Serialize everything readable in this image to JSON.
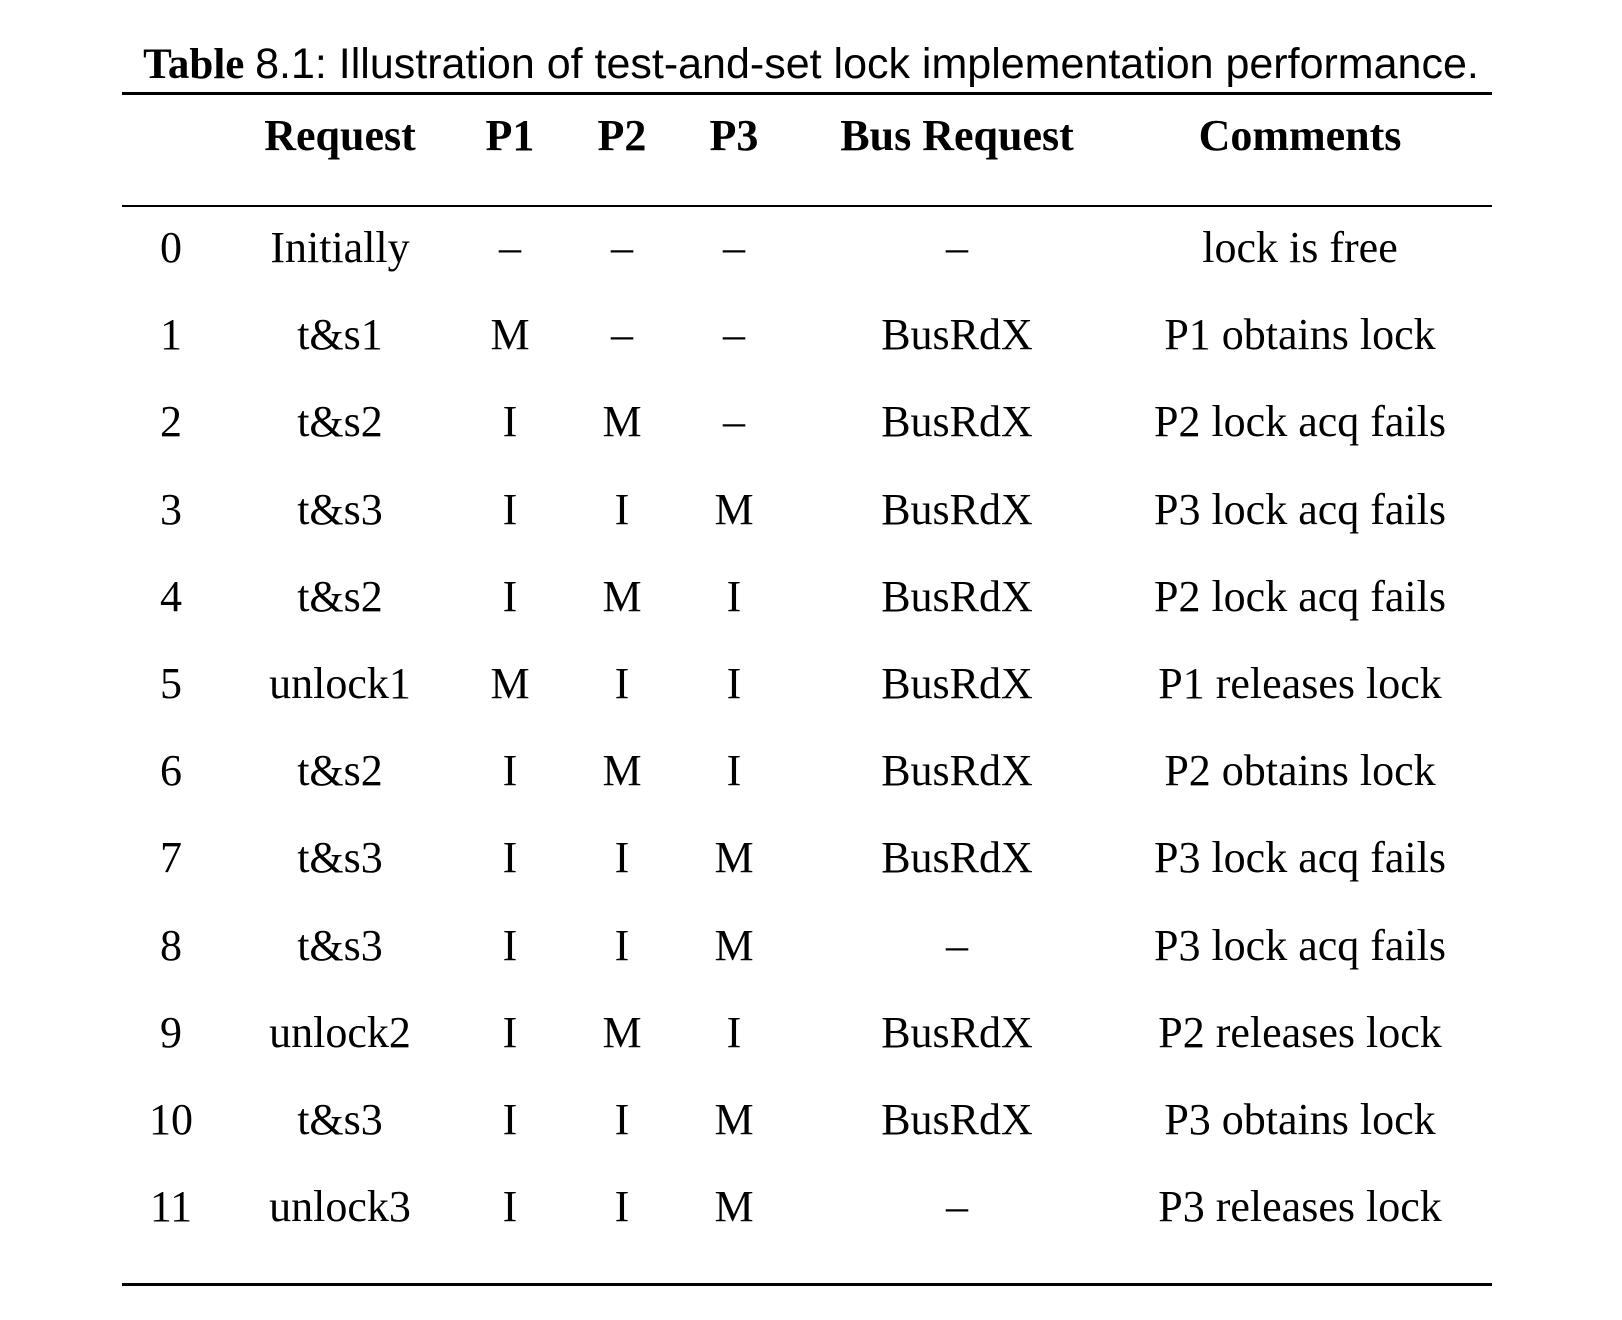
{
  "caption": {
    "label": "Table",
    "number": "8.1",
    "text": ": Illustration of test-and-set lock implementation performance."
  },
  "table": {
    "headers": {
      "index": "",
      "request": "Request",
      "p1": "P1",
      "p2": "P2",
      "p3": "P3",
      "bus_request": "Bus Request",
      "comments": "Comments"
    },
    "rows": [
      {
        "index": "0",
        "request": "Initially",
        "p1": "–",
        "p2": "–",
        "p3": "–",
        "bus_request": "–",
        "comments": "lock is free"
      },
      {
        "index": "1",
        "request": "t&s1",
        "p1": "M",
        "p2": "–",
        "p3": "–",
        "bus_request": "BusRdX",
        "comments": "P1 obtains lock"
      },
      {
        "index": "2",
        "request": "t&s2",
        "p1": "I",
        "p2": "M",
        "p3": "–",
        "bus_request": "BusRdX",
        "comments": "P2 lock acq fails"
      },
      {
        "index": "3",
        "request": "t&s3",
        "p1": "I",
        "p2": "I",
        "p3": "M",
        "bus_request": "BusRdX",
        "comments": "P3 lock acq fails"
      },
      {
        "index": "4",
        "request": "t&s2",
        "p1": "I",
        "p2": "M",
        "p3": "I",
        "bus_request": "BusRdX",
        "comments": "P2 lock acq fails"
      },
      {
        "index": "5",
        "request": "unlock1",
        "p1": "M",
        "p2": "I",
        "p3": "I",
        "bus_request": "BusRdX",
        "comments": "P1 releases lock"
      },
      {
        "index": "6",
        "request": "t&s2",
        "p1": "I",
        "p2": "M",
        "p3": "I",
        "bus_request": "BusRdX",
        "comments": "P2 obtains lock"
      },
      {
        "index": "7",
        "request": "t&s3",
        "p1": "I",
        "p2": "I",
        "p3": "M",
        "bus_request": "BusRdX",
        "comments": "P3 lock acq fails"
      },
      {
        "index": "8",
        "request": "t&s3",
        "p1": "I",
        "p2": "I",
        "p3": "M",
        "bus_request": "–",
        "comments": "P3 lock acq fails"
      },
      {
        "index": "9",
        "request": "unlock2",
        "p1": "I",
        "p2": "M",
        "p3": "I",
        "bus_request": "BusRdX",
        "comments": "P2 releases lock"
      },
      {
        "index": "10",
        "request": "t&s3",
        "p1": "I",
        "p2": "I",
        "p3": "M",
        "bus_request": "BusRdX",
        "comments": "P3 obtains lock"
      },
      {
        "index": "11",
        "request": "unlock3",
        "p1": "I",
        "p2": "I",
        "p3": "M",
        "bus_request": "–",
        "comments": "P3 releases lock"
      }
    ]
  }
}
